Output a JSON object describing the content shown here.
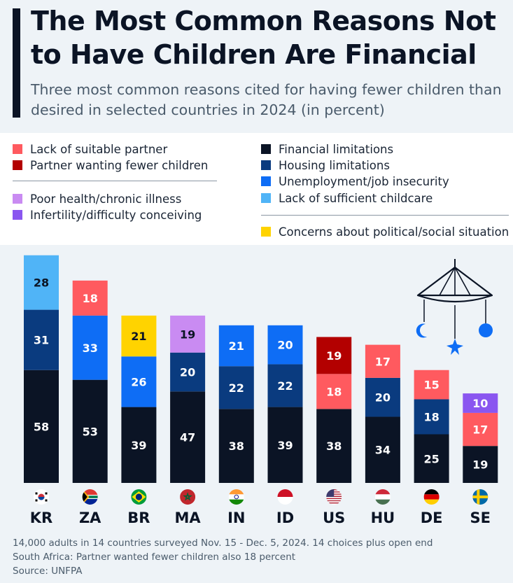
{
  "header": {
    "title": "The Most Common Reasons Not to Have Children Are Financial",
    "subtitle": "Three most common reasons cited for having fewer children than desired in selected countries in 2024 (in percent)"
  },
  "legend": {
    "left": [
      {
        "label": "Lack of suitable partner",
        "color": "#ff5a5f"
      },
      {
        "label": "Partner wanting fewer children",
        "color": "#b30000"
      },
      {
        "label": "Poor health/chronic illness",
        "color": "#c98bf2"
      },
      {
        "label": "Infertility/difficulty conceiving",
        "color": "#8a56f0"
      }
    ],
    "right": [
      {
        "label": "Financial limitations",
        "color": "#0b1425"
      },
      {
        "label": "Housing limitations",
        "color": "#0a3b7f"
      },
      {
        "label": "Unemployment/job insecurity",
        "color": "#0e6df5"
      },
      {
        "label": "Lack of sufficient childcare",
        "color": "#50b4f7"
      },
      {
        "label": "Concerns about political/social situation",
        "color": "#ffd300"
      }
    ]
  },
  "chart_data": {
    "type": "bar",
    "stacked": true,
    "title": "The Most Common Reasons Not to Have Children Are Financial",
    "categories": [
      "KR",
      "ZA",
      "BR",
      "MA",
      "IN",
      "ID",
      "US",
      "HU",
      "DE",
      "SE"
    ],
    "ylim": [
      0,
      120
    ],
    "bars": [
      {
        "country": "KR",
        "segments": [
          {
            "reason": "Financial limitations",
            "value": 58,
            "color": "#0b1425"
          },
          {
            "reason": "Housing limitations",
            "value": 31,
            "color": "#0a3b7f"
          },
          {
            "reason": "Lack of sufficient childcare",
            "value": 28,
            "color": "#50b4f7"
          }
        ]
      },
      {
        "country": "ZA",
        "segments": [
          {
            "reason": "Financial limitations",
            "value": 53,
            "color": "#0b1425"
          },
          {
            "reason": "Unemployment/job insecurity",
            "value": 33,
            "color": "#0e6df5"
          },
          {
            "reason": "Lack of suitable partner",
            "value": 18,
            "color": "#ff5a5f"
          }
        ]
      },
      {
        "country": "BR",
        "segments": [
          {
            "reason": "Financial limitations",
            "value": 39,
            "color": "#0b1425"
          },
          {
            "reason": "Unemployment/job insecurity",
            "value": 26,
            "color": "#0e6df5"
          },
          {
            "reason": "Concerns about political/social situation",
            "value": 21,
            "color": "#ffd300"
          }
        ]
      },
      {
        "country": "MA",
        "segments": [
          {
            "reason": "Financial limitations",
            "value": 47,
            "color": "#0b1425"
          },
          {
            "reason": "Housing limitations",
            "value": 20,
            "color": "#0a3b7f"
          },
          {
            "reason": "Poor health/chronic illness",
            "value": 19,
            "color": "#c98bf2"
          }
        ]
      },
      {
        "country": "IN",
        "segments": [
          {
            "reason": "Financial limitations",
            "value": 38,
            "color": "#0b1425"
          },
          {
            "reason": "Housing limitations",
            "value": 22,
            "color": "#0a3b7f"
          },
          {
            "reason": "Unemployment/job insecurity",
            "value": 21,
            "color": "#0e6df5"
          }
        ]
      },
      {
        "country": "ID",
        "segments": [
          {
            "reason": "Financial limitations",
            "value": 39,
            "color": "#0b1425"
          },
          {
            "reason": "Housing limitations",
            "value": 22,
            "color": "#0a3b7f"
          },
          {
            "reason": "Unemployment/job insecurity",
            "value": 20,
            "color": "#0e6df5"
          }
        ]
      },
      {
        "country": "US",
        "segments": [
          {
            "reason": "Financial limitations",
            "value": 38,
            "color": "#0b1425"
          },
          {
            "reason": "Lack of suitable partner",
            "value": 18,
            "color": "#ff5a5f"
          },
          {
            "reason": "Partner wanting fewer children",
            "value": 19,
            "color": "#b30000"
          }
        ]
      },
      {
        "country": "HU",
        "segments": [
          {
            "reason": "Financial limitations",
            "value": 34,
            "color": "#0b1425"
          },
          {
            "reason": "Housing limitations",
            "value": 20,
            "color": "#0a3b7f"
          },
          {
            "reason": "Lack of suitable partner",
            "value": 17,
            "color": "#ff5a5f"
          }
        ]
      },
      {
        "country": "DE",
        "segments": [
          {
            "reason": "Financial limitations",
            "value": 25,
            "color": "#0b1425"
          },
          {
            "reason": "Housing limitations",
            "value": 18,
            "color": "#0a3b7f"
          },
          {
            "reason": "Lack of suitable partner",
            "value": 15,
            "color": "#ff5a5f"
          }
        ]
      },
      {
        "country": "SE",
        "segments": [
          {
            "reason": "Financial limitations",
            "value": 19,
            "color": "#0b1425"
          },
          {
            "reason": "Lack of suitable partner",
            "value": 17,
            "color": "#ff5a5f"
          },
          {
            "reason": "Infertility/difficulty conceiving",
            "value": 10,
            "color": "#8a56f0"
          }
        ]
      }
    ]
  },
  "footer": {
    "note1": "14,000 adults in 14 countries surveyed Nov. 15 - Dec. 5, 2024. 14 choices plus open end",
    "note2": "South Africa: Partner wanted fewer children also 18 percent",
    "source": "Source: UNFPA"
  }
}
